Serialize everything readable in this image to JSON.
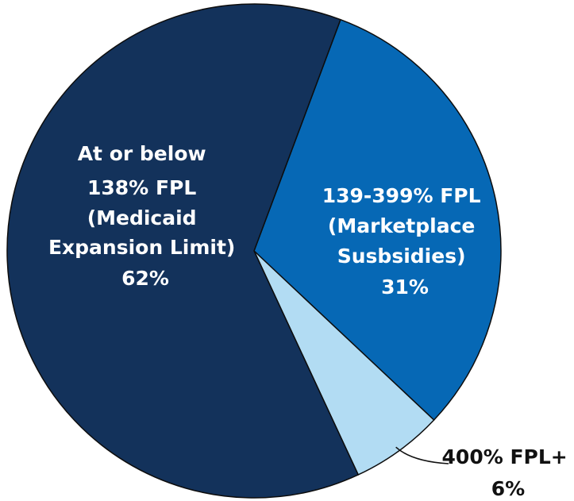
{
  "chart_data": {
    "type": "pie",
    "slices": [
      {
        "label_lines": [
          "At or below",
          "138% FPL",
          "(Medicaid",
          "Expansion Limit)"
        ],
        "value": 62,
        "value_label": "62%",
        "color": "#13325b",
        "label_placement": "inside"
      },
      {
        "label_lines": [
          "139-399% FPL",
          "(Marketplace",
          "Susbsidies)"
        ],
        "value": 31,
        "value_label": "31%",
        "color": "#0668b5",
        "label_placement": "inside"
      },
      {
        "label_lines": [
          "400% FPL+"
        ],
        "value": 6,
        "value_label": "6%",
        "color": "#b2dcf3",
        "label_placement": "outside-bottom-right"
      }
    ],
    "start_direction": "upper-right",
    "direction": "clockwise",
    "border_color": "#0d0d0d"
  }
}
